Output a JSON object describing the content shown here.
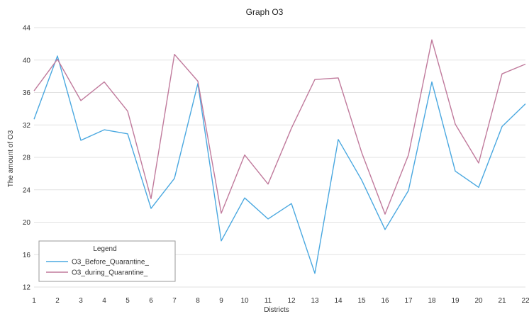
{
  "chart_data": {
    "type": "line",
    "title": "Graph O3",
    "xlabel": "Districts",
    "ylabel": "The amount of O3",
    "x": [
      1,
      2,
      3,
      4,
      5,
      6,
      7,
      8,
      9,
      10,
      11,
      12,
      13,
      14,
      15,
      16,
      17,
      18,
      19,
      20,
      21,
      22
    ],
    "ylim": [
      12,
      44
    ],
    "yticks": [
      12,
      16,
      20,
      24,
      28,
      32,
      36,
      40,
      44
    ],
    "grid": "horizontal",
    "legend": {
      "title": "Legend",
      "placement": "bottom-left"
    },
    "series": [
      {
        "name": "O3_Before_Quarantine_",
        "color": "#4aa8e0",
        "values": [
          32.7,
          40.5,
          30.1,
          31.4,
          30.9,
          21.7,
          25.4,
          37.1,
          17.7,
          23.0,
          20.4,
          22.3,
          13.7,
          30.2,
          25.2,
          19.1,
          23.9,
          37.3,
          26.3,
          24.3,
          31.8,
          34.6
        ]
      },
      {
        "name": "O3_during_Quarantine_",
        "color": "#c07a9c",
        "values": [
          36.2,
          40.1,
          35.0,
          37.3,
          33.7,
          22.9,
          40.7,
          37.4,
          21.1,
          28.3,
          24.7,
          31.6,
          37.6,
          37.8,
          28.6,
          21.0,
          28.3,
          42.5,
          32.1,
          27.3,
          38.3,
          39.5
        ]
      }
    ]
  }
}
